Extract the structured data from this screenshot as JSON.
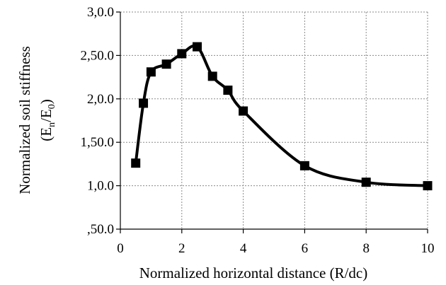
{
  "chart_data": {
    "type": "line",
    "title": "",
    "xlabel": "Normalized horizontal distance (R/dc)",
    "ylabel_line1": "Normalized soil stiffness",
    "ylabel_line2": {
      "open": "(E",
      "sub1": "n",
      "mid": "/E",
      "sub2": "0",
      "close": ")"
    },
    "xlim": [
      0,
      10
    ],
    "ylim": [
      0.5,
      3.0
    ],
    "x_ticks": [
      {
        "value": 0,
        "label": "0"
      },
      {
        "value": 2,
        "label": "2"
      },
      {
        "value": 4,
        "label": "4"
      },
      {
        "value": 6,
        "label": "6"
      },
      {
        "value": 8,
        "label": "8"
      },
      {
        "value": 10,
        "label": "10"
      }
    ],
    "y_ticks": [
      {
        "value": 0.5,
        "label": ",50.0"
      },
      {
        "value": 1.0,
        "label": "1,0.0"
      },
      {
        "value": 1.5,
        "label": "1,50.0"
      },
      {
        "value": 2.0,
        "label": "2,0.0"
      },
      {
        "value": 2.5,
        "label": "2,50.0"
      },
      {
        "value": 3.0,
        "label": "3,0.0"
      }
    ],
    "grid": {
      "x": true,
      "y": true
    },
    "smooth": true,
    "marker": "square",
    "series": [
      {
        "x": [
          0.5,
          0.75,
          1.0,
          1.5,
          2.0,
          2.5,
          3.0,
          3.5,
          4.0,
          6.0,
          8.0,
          10.0
        ],
        "y": [
          1.26,
          1.95,
          2.31,
          2.4,
          2.52,
          2.6,
          2.26,
          2.1,
          1.86,
          1.23,
          1.04,
          1.0
        ]
      }
    ]
  }
}
